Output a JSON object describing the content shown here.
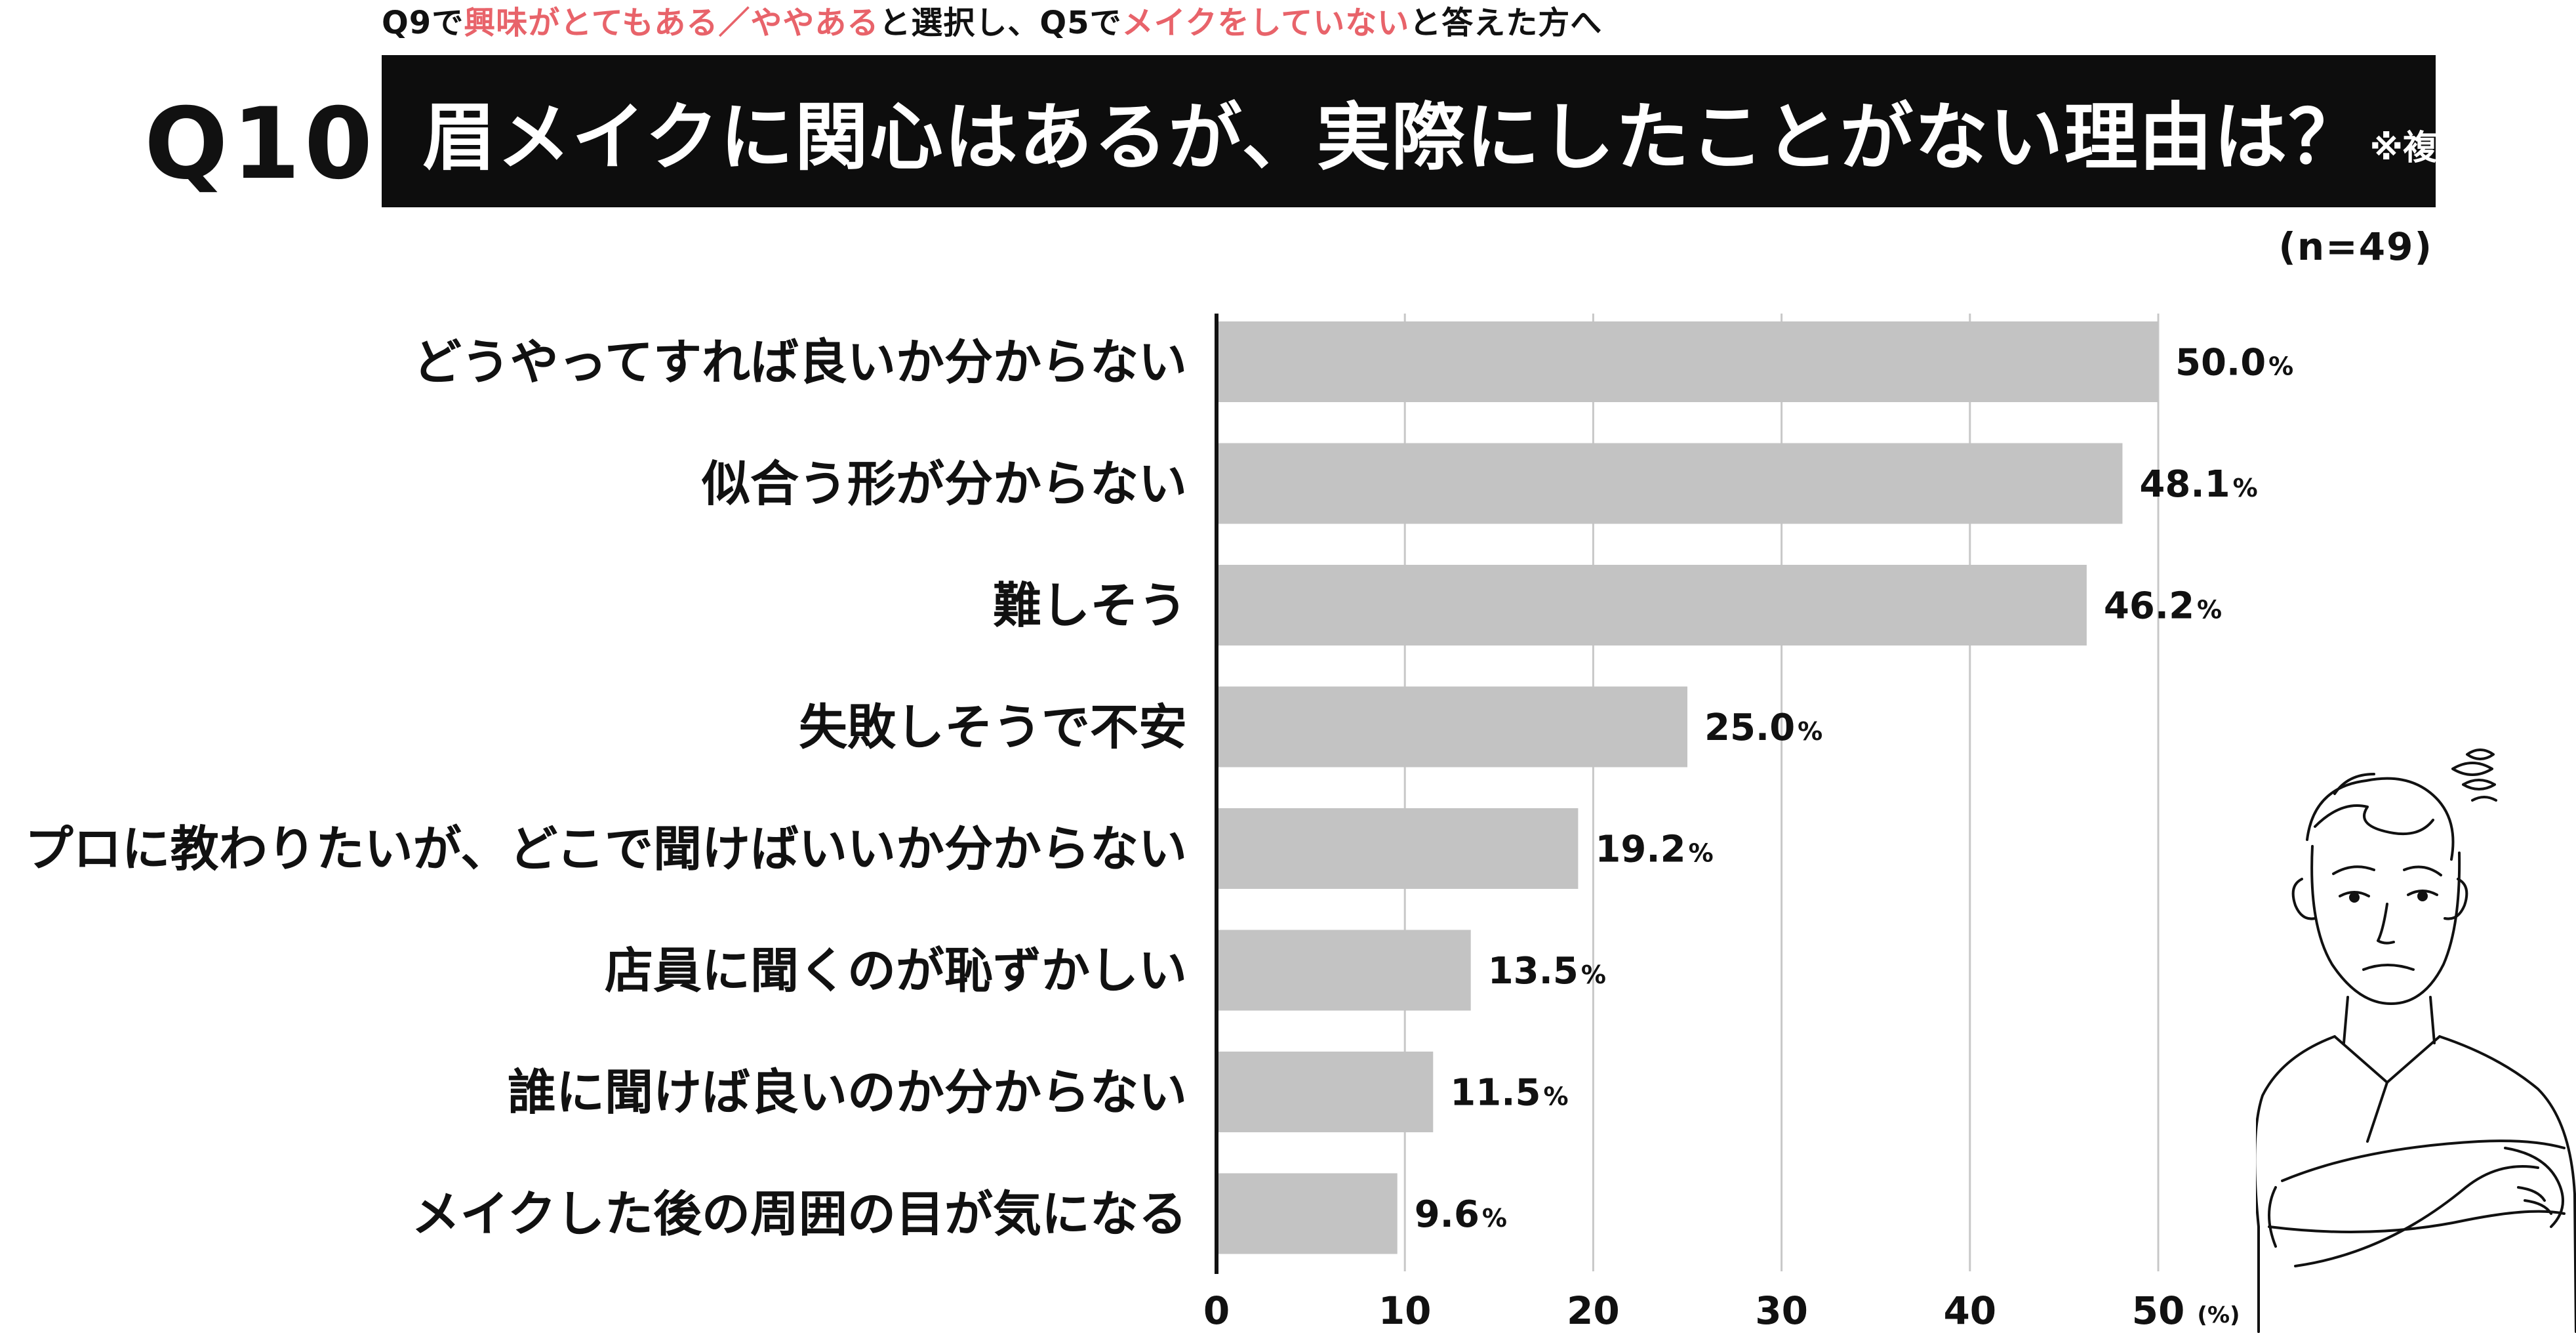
{
  "header": {
    "subheader_parts": [
      {
        "text": "Q9で",
        "highlight": false
      },
      {
        "text": "興味がとてもある／ややある",
        "highlight": true
      },
      {
        "text": "と選択し、Q5で",
        "highlight": false
      },
      {
        "text": "メイクをしていない",
        "highlight": true
      },
      {
        "text": "と答えた方へ",
        "highlight": false
      }
    ],
    "question_number": "Q10",
    "title": "眉メイクに関心はあるが、実際にしたことがない理由は？",
    "title_note": "※複数回答",
    "sample_size": "(n=49)"
  },
  "colors": {
    "bar": "#c3c3c3",
    "axis": "#111111",
    "grid": "#c8c8c8",
    "highlight_text": "#e8636a",
    "title_band": "#0d0d0d"
  },
  "chart_data": {
    "type": "bar",
    "orientation": "horizontal",
    "categories": [
      "どうやってすれば良いか分からない",
      "似合う形が分からない",
      "難しそう",
      "失敗しそうで不安",
      "プロに教わりたいが、どこで聞けばいいか分からない",
      "店員に聞くのが恥ずかしい",
      "誰に聞けば良いのか分からない",
      "メイクした後の周囲の目が気になる"
    ],
    "values": [
      50.0,
      48.1,
      46.2,
      25.0,
      19.2,
      13.5,
      11.5,
      9.6
    ],
    "value_labels": [
      "50.0",
      "48.1",
      "46.2",
      "25.0",
      "19.2",
      "13.5",
      "11.5",
      "9.6"
    ],
    "value_unit": "%",
    "x_ticks": [
      "0",
      "10",
      "20",
      "30",
      "40",
      "50"
    ],
    "x_unit_label": "(%)",
    "xlim": [
      0,
      50
    ],
    "grid": true
  },
  "illustration": {
    "icon": "worried-man-arms-crossed-illustration"
  }
}
